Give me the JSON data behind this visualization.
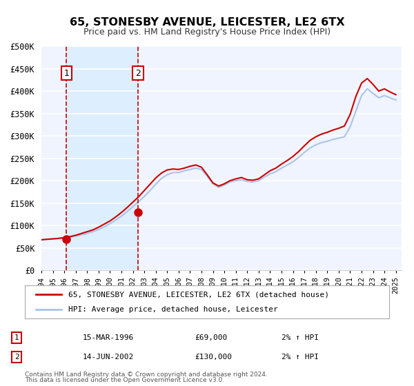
{
  "title": "65, STONESBY AVENUE, LEICESTER, LE2 6TX",
  "subtitle": "Price paid vs. HM Land Registry's House Price Index (HPI)",
  "title_fontsize": 12,
  "subtitle_fontsize": 10,
  "xlabel": "",
  "ylabel": "",
  "ylim": [
    0,
    500000
  ],
  "yticks": [
    0,
    50000,
    100000,
    150000,
    200000,
    250000,
    300000,
    350000,
    400000,
    450000,
    500000
  ],
  "ytick_labels": [
    "£0",
    "£50K",
    "£100K",
    "£150K",
    "£200K",
    "£250K",
    "£300K",
    "£350K",
    "£400K",
    "£450K",
    "£500K"
  ],
  "xlim_start": 1994.0,
  "xlim_end": 2025.5,
  "background_color": "#ffffff",
  "plot_bg_color": "#f0f4ff",
  "grid_color": "#ffffff",
  "hpi_color": "#aac4e8",
  "price_color": "#cc0000",
  "sale1_x": 1996.2,
  "sale1_y": 69000,
  "sale2_x": 2002.45,
  "sale2_y": 130000,
  "vline_color": "#cc0000",
  "marker_color": "#cc0000",
  "highlight_bg": "#ddeeff",
  "legend_label1": "65, STONESBY AVENUE, LEICESTER, LE2 6TX (detached house)",
  "legend_label2": "HPI: Average price, detached house, Leicester",
  "table_row1": [
    "1",
    "15-MAR-1996",
    "£69,000",
    "2% ↑ HPI"
  ],
  "table_row2": [
    "2",
    "14-JUN-2002",
    "£130,000",
    "2% ↑ HPI"
  ],
  "footer1": "Contains HM Land Registry data © Crown copyright and database right 2024.",
  "footer2": "This data is licensed under the Open Government Licence v3.0.",
  "hpi_data_x": [
    1994.0,
    1994.5,
    1995.0,
    1995.5,
    1996.0,
    1996.5,
    1997.0,
    1997.5,
    1998.0,
    1998.5,
    1999.0,
    1999.5,
    2000.0,
    2000.5,
    2001.0,
    2001.5,
    2002.0,
    2002.5,
    2003.0,
    2003.5,
    2004.0,
    2004.5,
    2005.0,
    2005.5,
    2006.0,
    2006.5,
    2007.0,
    2007.5,
    2008.0,
    2008.5,
    2009.0,
    2009.5,
    2010.0,
    2010.5,
    2011.0,
    2011.5,
    2012.0,
    2012.5,
    2013.0,
    2013.5,
    2014.0,
    2014.5,
    2015.0,
    2015.5,
    2016.0,
    2016.5,
    2017.0,
    2017.5,
    2018.0,
    2018.5,
    2019.0,
    2019.5,
    2020.0,
    2020.5,
    2021.0,
    2021.5,
    2022.0,
    2022.5,
    2023.0,
    2023.5,
    2024.0,
    2024.5,
    2025.0
  ],
  "hpi_data_y": [
    68000,
    69000,
    70000,
    71000,
    72000,
    74000,
    76000,
    79000,
    82000,
    86000,
    91000,
    97000,
    104000,
    112000,
    121000,
    131000,
    142000,
    153000,
    165000,
    178000,
    192000,
    205000,
    213000,
    218000,
    218000,
    222000,
    225000,
    228000,
    225000,
    210000,
    193000,
    185000,
    190000,
    197000,
    200000,
    202000,
    198000,
    197000,
    200000,
    208000,
    215000,
    220000,
    228000,
    235000,
    242000,
    252000,
    263000,
    273000,
    280000,
    285000,
    288000,
    292000,
    295000,
    298000,
    320000,
    355000,
    390000,
    405000,
    395000,
    385000,
    390000,
    385000,
    380000
  ],
  "price_data_x": [
    1994.0,
    1994.5,
    1995.0,
    1995.5,
    1996.0,
    1996.5,
    1997.0,
    1997.5,
    1998.0,
    1998.5,
    1999.0,
    1999.5,
    2000.0,
    2000.5,
    2001.0,
    2001.5,
    2002.0,
    2002.5,
    2003.0,
    2003.5,
    2004.0,
    2004.5,
    2005.0,
    2005.5,
    2006.0,
    2006.5,
    2007.0,
    2007.5,
    2008.0,
    2008.5,
    2009.0,
    2009.5,
    2010.0,
    2010.5,
    2011.0,
    2011.5,
    2012.0,
    2012.5,
    2013.0,
    2013.5,
    2014.0,
    2014.5,
    2015.0,
    2015.5,
    2016.0,
    2016.5,
    2017.0,
    2017.5,
    2018.0,
    2018.5,
    2019.0,
    2019.5,
    2020.0,
    2020.5,
    2021.0,
    2021.5,
    2022.0,
    2022.5,
    2023.0,
    2023.5,
    2024.0,
    2024.5,
    2025.0
  ],
  "price_data_y": [
    68000,
    69000,
    70000,
    71000,
    73000,
    75000,
    78000,
    82000,
    86000,
    90000,
    96000,
    103000,
    110000,
    119000,
    129000,
    140000,
    152000,
    164000,
    178000,
    192000,
    206000,
    217000,
    224000,
    226000,
    225000,
    228000,
    232000,
    235000,
    230000,
    213000,
    195000,
    188000,
    193000,
    200000,
    204000,
    207000,
    202000,
    201000,
    204000,
    213000,
    222000,
    228000,
    237000,
    245000,
    254000,
    265000,
    278000,
    290000,
    298000,
    304000,
    308000,
    313000,
    317000,
    322000,
    348000,
    388000,
    418000,
    428000,
    415000,
    400000,
    405000,
    398000,
    392000
  ]
}
